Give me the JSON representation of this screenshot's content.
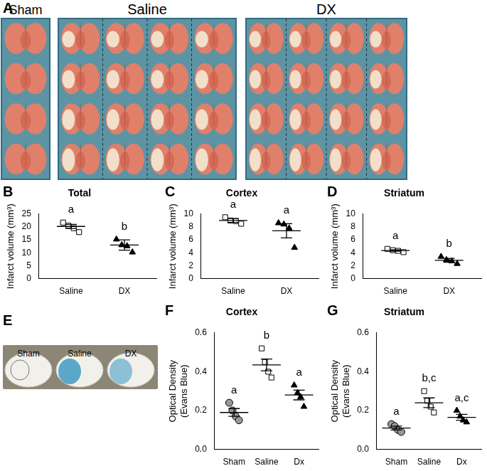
{
  "figure_text": {
    "A": {
      "letter": "A",
      "labels": [
        "Sham",
        "Saline",
        "DX"
      ]
    },
    "E": {
      "letter": "E",
      "labels": [
        "Sham",
        "Saline",
        "DX"
      ]
    }
  },
  "chart_data": [
    {
      "type": "scatter",
      "panel": "B",
      "title": "Total",
      "y_label": "Infarct volume (mm³)",
      "categories": [
        "Saline",
        "DX"
      ],
      "values": [
        [
          21.7,
          20.5,
          19.5,
          18.0
        ],
        [
          15.2,
          13.0,
          12.6,
          10.2
        ]
      ],
      "mean": [
        20.2,
        13.0
      ],
      "error": [
        0.8,
        2.0
      ],
      "markers": [
        "square",
        "triangle"
      ],
      "colors": [
        "#ffffff",
        "#000000"
      ],
      "annotations": [
        "a",
        "b"
      ],
      "ylim": [
        0,
        25
      ],
      "yticks": [
        0,
        5,
        10,
        15,
        20,
        25
      ],
      "grid": false
    },
    {
      "type": "scatter",
      "panel": "C",
      "title": "Cortex",
      "y_label": "Infarct volume (mm³)",
      "categories": [
        "Saline",
        "DX"
      ],
      "values": [
        [
          9.5,
          9.0,
          8.9,
          8.5
        ],
        [
          8.6,
          8.4,
          7.8,
          4.8
        ]
      ],
      "mean": [
        9.0,
        7.4
      ],
      "error": [
        0.3,
        1.1
      ],
      "markers": [
        "square",
        "triangle"
      ],
      "colors": [
        "#ffffff",
        "#000000"
      ],
      "annotations": [
        "a",
        "a"
      ],
      "ylim": [
        0,
        10
      ],
      "yticks": [
        0,
        2,
        4,
        6,
        8,
        10
      ],
      "grid": false
    },
    {
      "type": "scatter",
      "panel": "D",
      "title": "Striatum",
      "y_label": "Infarct volume (mm³)",
      "categories": [
        "Saline",
        "DX"
      ],
      "values": [
        [
          4.6,
          4.4,
          4.3,
          4.1
        ],
        [
          3.4,
          2.9,
          2.7,
          2.3
        ]
      ],
      "mean": [
        4.35,
        2.83
      ],
      "error": [
        0.1,
        0.3
      ],
      "markers": [
        "square",
        "triangle"
      ],
      "colors": [
        "#ffffff",
        "#000000"
      ],
      "annotations": [
        "a",
        "b"
      ],
      "ylim": [
        0,
        10
      ],
      "yticks": [
        0,
        2,
        4,
        6,
        8,
        10
      ],
      "grid": false
    },
    {
      "type": "scatter",
      "panel": "F",
      "title": "Cortex",
      "y_label": [
        "Optical Density",
        "(Evans Blue)"
      ],
      "categories": [
        "Sham",
        "Saline",
        "Dx"
      ],
      "values": [
        [
          0.24,
          0.2,
          0.17,
          0.15
        ],
        [
          0.52,
          0.45,
          0.4,
          0.37
        ],
        [
          0.33,
          0.29,
          0.27,
          0.22
        ]
      ],
      "mean": [
        0.19,
        0.435,
        0.28
      ],
      "error": [
        0.02,
        0.03,
        0.025
      ],
      "markers": [
        "circle",
        "square",
        "triangle"
      ],
      "colors": [
        "#999999",
        "#ffffff",
        "#000000"
      ],
      "annotations": [
        "a",
        "b",
        "a"
      ],
      "ylim": [
        0,
        0.6
      ],
      "yticks": [
        {
          "value": 0,
          "label": "0.0"
        },
        0.2,
        0.4,
        0.6
      ],
      "grid": false
    },
    {
      "type": "scatter",
      "panel": "G",
      "title": "Striatum",
      "y_label": [
        "Optical Density",
        "(Evans Blue)"
      ],
      "categories": [
        "Sham",
        "Saline",
        "Dx"
      ],
      "values": [
        [
          0.13,
          0.12,
          0.1,
          0.09
        ],
        [
          0.3,
          0.25,
          0.22,
          0.19
        ],
        [
          0.2,
          0.17,
          0.15,
          0.14
        ]
      ],
      "mean": [
        0.11,
        0.24,
        0.165
      ],
      "error": [
        0.01,
        0.025,
        0.015
      ],
      "markers": [
        "circle",
        "square",
        "triangle"
      ],
      "colors": [
        "#999999",
        "#ffffff",
        "#000000"
      ],
      "annotations": [
        "a",
        "b,c",
        "a,c"
      ],
      "ylim": [
        0,
        0.6
      ],
      "yticks": [
        {
          "value": 0,
          "label": "0.0"
        },
        0.2,
        0.4,
        0.6
      ],
      "grid": false
    }
  ]
}
